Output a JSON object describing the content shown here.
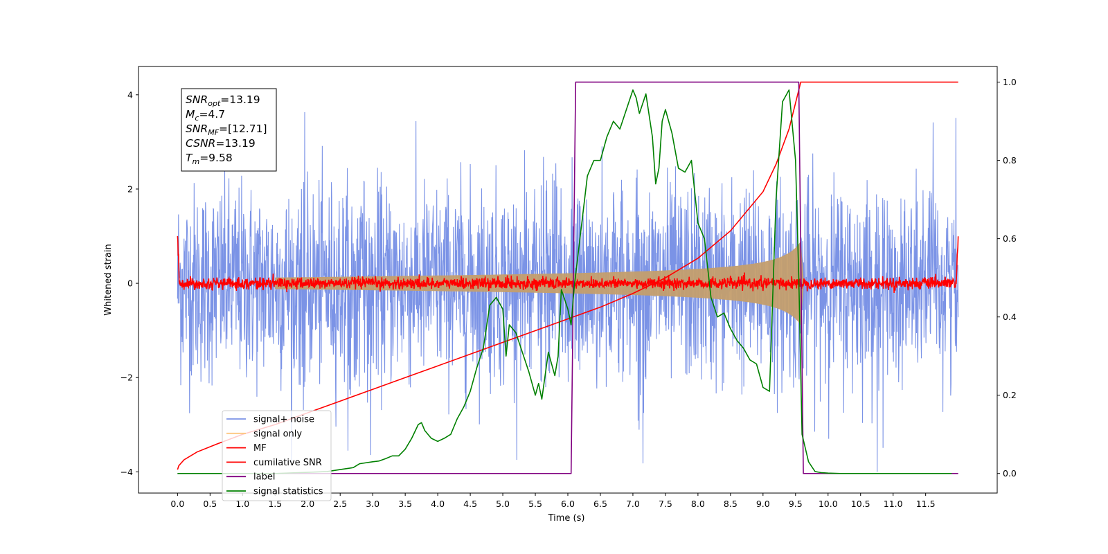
{
  "chart_data": {
    "type": "line",
    "xlabel": "Time (s)",
    "ylabel": "Whitened strain",
    "xlim": [
      -0.6,
      12.6
    ],
    "ylim_left": [
      -4.45,
      4.6
    ],
    "ylim_right": [
      -0.05,
      1.04
    ],
    "x_ticks": [
      "0.0",
      "0.5",
      "1.0",
      "1.5",
      "2.0",
      "2.5",
      "3.0",
      "3.5",
      "4.0",
      "4.5",
      "5.0",
      "5.5",
      "6.0",
      "6.5",
      "7.0",
      "7.5",
      "8.0",
      "8.5",
      "9.0",
      "9.5",
      "10.0",
      "10.5",
      "11.0",
      "11.5"
    ],
    "y_ticks_left": [
      "4",
      "2",
      "0",
      "−2",
      "−4"
    ],
    "y_ticks_right": [
      "1.0",
      "0.8",
      "0.6",
      "0.4",
      "0.2",
      "0.0"
    ],
    "annotation": {
      "lines": [
        {
          "var": "SNR",
          "sub": "opt",
          "value": "=13.19"
        },
        {
          "var": "M",
          "sub": "c",
          "value": "=4.7"
        },
        {
          "var": "SNR",
          "sub": "MF",
          "value": "=[12.71]"
        },
        {
          "var": "CSNR",
          "sub": "",
          "value": "=13.19"
        },
        {
          "var": "T",
          "sub": "m",
          "value": "=9.58"
        }
      ]
    },
    "legend": {
      "placement": "lower-left",
      "entries": [
        {
          "label": "signal+ noise",
          "color": "#7b93e6"
        },
        {
          "label": "signal only",
          "color": "#fdc77f"
        },
        {
          "label": "MF",
          "color": "#ff0000"
        },
        {
          "label": "cumilative SNR",
          "color": "#ff0000"
        },
        {
          "label": "label",
          "color": "#800080"
        },
        {
          "label": "signal statistics",
          "color": "#008000"
        }
      ]
    },
    "series": [
      {
        "name": "signal+ noise",
        "axis": "left",
        "color": "#7b93e6",
        "description_range": [
          0.0,
          12.0
        ],
        "approx_envelope": [
          -3.5,
          3.6
        ]
      },
      {
        "name": "signal only",
        "axis": "left",
        "color": "#c49e6d",
        "chirp_start": 1.5,
        "chirp_end": 9.58,
        "amplitude_end": 0.75
      },
      {
        "name": "MF",
        "axis": "left",
        "color": "#ff0000",
        "range": [
          0.0,
          12.0
        ],
        "edge_value": 1.0
      },
      {
        "name": "cumilative SNR",
        "axis": "right",
        "color": "#ff0000",
        "x": [
          0.0,
          0.02,
          0.1,
          0.3,
          0.6,
          1.0,
          1.5,
          2.0,
          2.5,
          3.0,
          3.5,
          4.0,
          4.5,
          5.0,
          5.5,
          6.0,
          6.5,
          7.0,
          7.5,
          8.0,
          8.5,
          9.0,
          9.2,
          9.4,
          9.58,
          10.0,
          11.0,
          12.0
        ],
        "y": [
          0.01,
          0.02,
          0.035,
          0.055,
          0.075,
          0.1,
          0.125,
          0.155,
          0.185,
          0.215,
          0.245,
          0.275,
          0.305,
          0.335,
          0.365,
          0.395,
          0.425,
          0.46,
          0.5,
          0.55,
          0.62,
          0.72,
          0.79,
          0.88,
          1.0,
          1.0,
          1.0,
          1.0
        ]
      },
      {
        "name": "label",
        "axis": "right",
        "color": "#800080",
        "x": [
          0.0,
          6.05,
          6.12,
          9.55,
          9.62,
          12.0
        ],
        "y": [
          0.0,
          0.0,
          1.0,
          1.0,
          0.0,
          0.0
        ]
      },
      {
        "name": "signal statistics",
        "axis": "right",
        "color": "#008000",
        "x": [
          0.0,
          1.0,
          1.5,
          2.0,
          2.3,
          2.5,
          2.7,
          2.8,
          3.0,
          3.1,
          3.2,
          3.3,
          3.4,
          3.5,
          3.6,
          3.7,
          3.75,
          3.8,
          3.9,
          4.0,
          4.1,
          4.2,
          4.3,
          4.4,
          4.5,
          4.6,
          4.7,
          4.8,
          4.9,
          5.0,
          5.05,
          5.1,
          5.2,
          5.3,
          5.4,
          5.5,
          5.55,
          5.6,
          5.7,
          5.8,
          5.85,
          5.9,
          6.0,
          6.05,
          6.1,
          6.2,
          6.3,
          6.4,
          6.5,
          6.6,
          6.7,
          6.8,
          6.9,
          7.0,
          7.05,
          7.1,
          7.2,
          7.3,
          7.35,
          7.4,
          7.45,
          7.5,
          7.6,
          7.7,
          7.8,
          7.9,
          8.0,
          8.1,
          8.2,
          8.3,
          8.4,
          8.5,
          8.6,
          8.7,
          8.8,
          8.9,
          9.0,
          9.1,
          9.2,
          9.3,
          9.4,
          9.5,
          9.55,
          9.6,
          9.7,
          9.8,
          9.9,
          10.0,
          10.2,
          10.5,
          11.0,
          11.5,
          11.9
        ],
        "y": [
          0.0,
          0.0,
          0.0,
          0.003,
          0.005,
          0.01,
          0.015,
          0.025,
          0.03,
          0.032,
          0.038,
          0.045,
          0.045,
          0.062,
          0.09,
          0.125,
          0.13,
          0.11,
          0.09,
          0.082,
          0.09,
          0.1,
          0.14,
          0.17,
          0.21,
          0.27,
          0.32,
          0.43,
          0.45,
          0.42,
          0.3,
          0.38,
          0.36,
          0.31,
          0.26,
          0.2,
          0.23,
          0.19,
          0.31,
          0.25,
          0.3,
          0.47,
          0.42,
          0.38,
          0.48,
          0.62,
          0.76,
          0.8,
          0.8,
          0.86,
          0.9,
          0.88,
          0.93,
          0.98,
          0.96,
          0.92,
          0.97,
          0.86,
          0.74,
          0.78,
          0.9,
          0.93,
          0.87,
          0.78,
          0.77,
          0.8,
          0.64,
          0.6,
          0.45,
          0.4,
          0.41,
          0.37,
          0.34,
          0.32,
          0.29,
          0.28,
          0.22,
          0.21,
          0.7,
          0.95,
          0.98,
          0.8,
          0.5,
          0.1,
          0.03,
          0.005,
          0.002,
          0.001,
          0.0,
          0.0,
          0.0,
          0.0,
          0.0
        ]
      }
    ]
  }
}
